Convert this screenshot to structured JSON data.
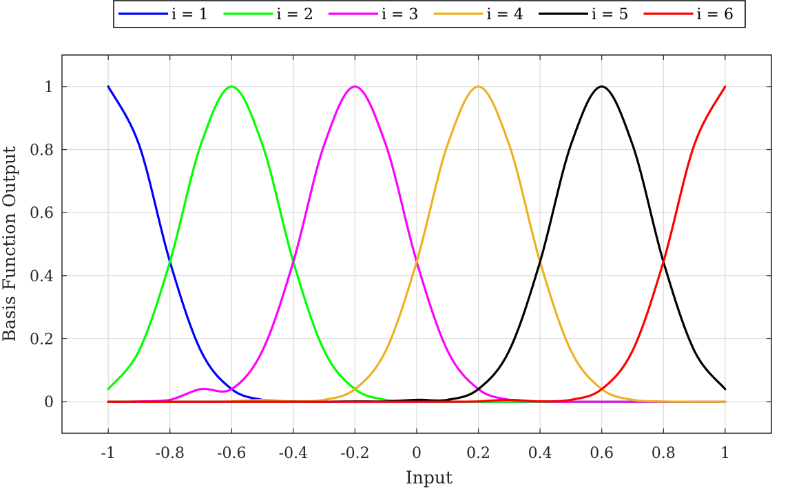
{
  "chart_data": {
    "type": "line",
    "title": "",
    "xlabel": "Input",
    "ylabel": "Basis Function Output",
    "xlim": [
      -1.15,
      1.15
    ],
    "ylim": [
      -0.1,
      1.1
    ],
    "xticks": [
      -1,
      -0.8,
      -0.6,
      -0.4,
      -0.2,
      0,
      0.2,
      0.4,
      0.6,
      0.8,
      1
    ],
    "xtick_labels": [
      "-1",
      "-0.8",
      "-0.6",
      "-0.4",
      "-0.2",
      "0",
      "0.2",
      "0.4",
      "0.6",
      "0.8",
      "1"
    ],
    "yticks": [
      0,
      0.2,
      0.4,
      0.6,
      0.8,
      1
    ],
    "ytick_labels": [
      "0",
      "0.2",
      "0.4",
      "0.6",
      "0.8",
      "1"
    ],
    "grid": true,
    "legend_position": "top, outside, horizontal",
    "x": [
      -1,
      -0.9,
      -0.8,
      -0.7,
      -0.6,
      -0.5,
      -0.4,
      -0.3,
      -0.2,
      -0.1,
      0,
      0.1,
      0.2,
      0.3,
      0.4,
      0.5,
      0.6,
      0.7,
      0.8,
      0.9,
      1
    ],
    "series": [
      {
        "name": "i = 1",
        "color": "#0000ff",
        "values": [
          1.0,
          0.815,
          0.444,
          0.162,
          0.04,
          0.006,
          0.001,
          0,
          0,
          0,
          0,
          0,
          0,
          0,
          0,
          0,
          0,
          0,
          0,
          0,
          0
        ]
      },
      {
        "name": "i = 2",
        "color": "#00ff00",
        "values": [
          0.04,
          0.162,
          0.444,
          0.815,
          1.0,
          0.815,
          0.444,
          0.162,
          0.04,
          0.006,
          0.001,
          0,
          0,
          0,
          0,
          0,
          0,
          0,
          0,
          0,
          0
        ]
      },
      {
        "name": "i = 3",
        "color": "#ff00ff",
        "values": [
          0,
          0.001,
          0.006,
          0.04,
          0.04,
          0.162,
          0.444,
          0.815,
          1.0,
          0.815,
          0.444,
          0.162,
          0.04,
          0.006,
          0.001,
          0,
          0,
          0,
          0,
          0,
          0
        ]
      },
      {
        "name": "i = 4",
        "color": "#edb120",
        "values": [
          0,
          0,
          0,
          0,
          0.001,
          0.006,
          0.001,
          0.006,
          0.04,
          0.162,
          0.444,
          0.815,
          1.0,
          0.815,
          0.444,
          0.162,
          0.04,
          0.006,
          0.001,
          0,
          0
        ]
      },
      {
        "name": "i = 5",
        "color": "#000000",
        "values": [
          0,
          0,
          0,
          0,
          0,
          0,
          0,
          0,
          0.001,
          0.001,
          0.006,
          0.006,
          0.04,
          0.162,
          0.444,
          0.815,
          1.0,
          0.815,
          0.444,
          0.162,
          0.04
        ]
      },
      {
        "name": "i = 6",
        "color": "#ff0000",
        "values": [
          0,
          0,
          0,
          0,
          0,
          0,
          0,
          0,
          0,
          0,
          0,
          0,
          0.001,
          0.006,
          0.001,
          0.006,
          0.04,
          0.162,
          0.444,
          0.815,
          1.0
        ]
      }
    ]
  }
}
